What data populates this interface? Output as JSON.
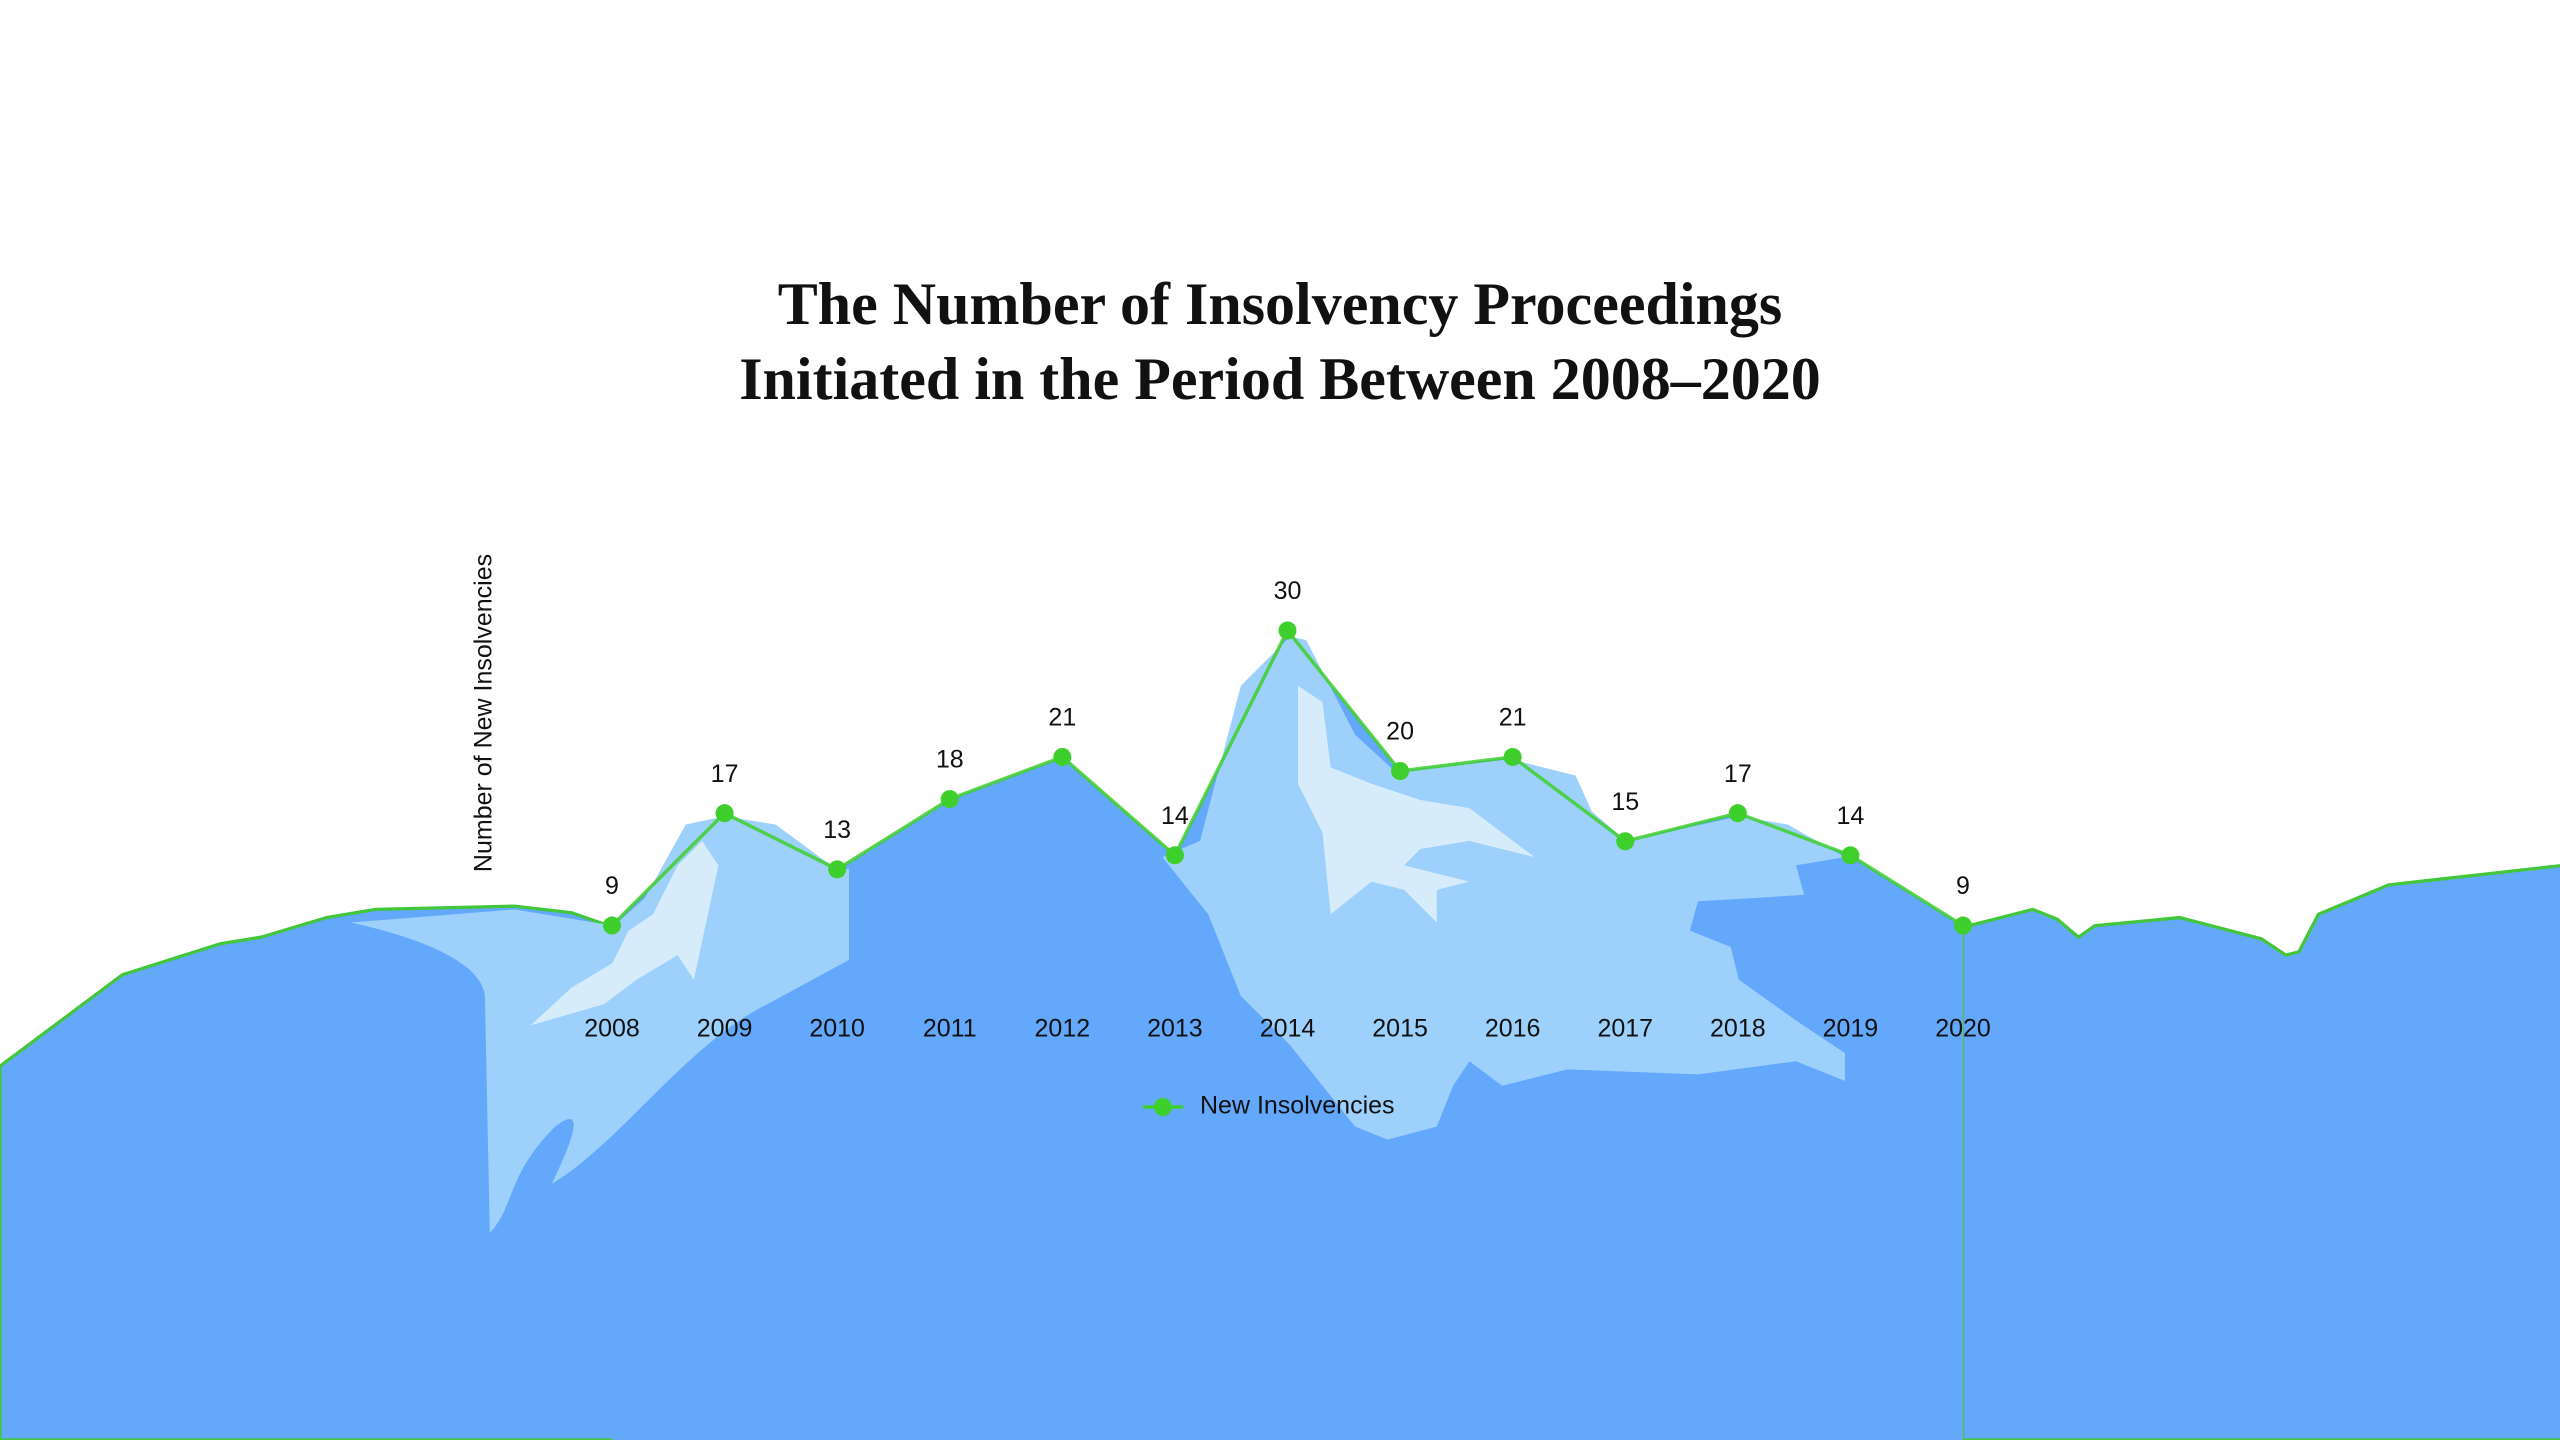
{
  "chart_data": {
    "type": "line",
    "title": [
      "The Number of Insolvency Proceedings",
      "Initiated in the Period Between 2008–2020"
    ],
    "y_label": "Number of New Insolvencies",
    "categories": [
      "2008",
      "2009",
      "2010",
      "2011",
      "2012",
      "2013",
      "2014",
      "2015",
      "2016",
      "2017",
      "2018",
      "2019",
      "2020"
    ],
    "series": [
      {
        "name": "New Insolvencies",
        "color": "#3fcf2c",
        "values": [
          9,
          17,
          13,
          18,
          21,
          14,
          30,
          20,
          21,
          15,
          17,
          14,
          9
        ]
      }
    ],
    "ylim": [
      0,
      40
    ]
  }
}
